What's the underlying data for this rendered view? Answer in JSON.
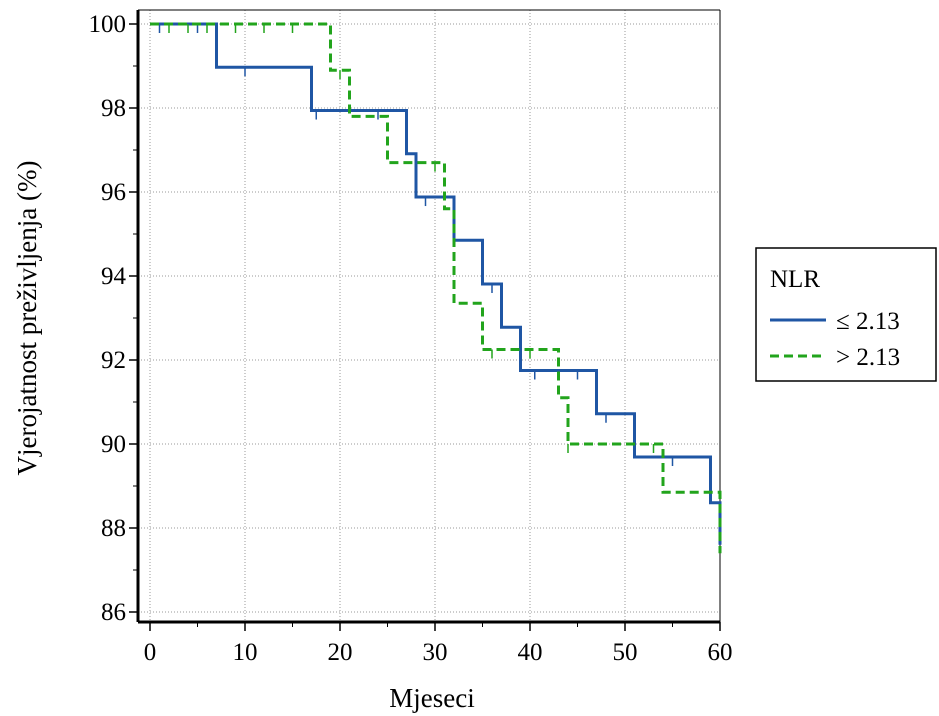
{
  "chart_data": {
    "type": "line",
    "subtype": "kaplan-meier step",
    "title": "",
    "xlabel": "Mjeseci",
    "ylabel": "Vjerojatnost preživljenja (%)",
    "xlim": [
      0,
      60
    ],
    "ylim": [
      86,
      100
    ],
    "x_ticks": [
      0,
      10,
      20,
      30,
      40,
      50,
      60
    ],
    "x_tick_labels": [
      "0",
      "10",
      "20",
      "30",
      "40",
      "50",
      "60"
    ],
    "y_ticks": [
      86,
      88,
      90,
      92,
      94,
      96,
      98,
      100
    ],
    "y_tick_labels": [
      "86",
      "88",
      "90",
      "92",
      "94",
      "96",
      "98",
      "100"
    ],
    "grid": true,
    "legend": {
      "title": "NLR",
      "placement": "right",
      "entries": [
        "≤ 2.13",
        "> 2.13"
      ]
    },
    "series": [
      {
        "name": "≤ 2.13",
        "color": "#1f56a4",
        "dash": "solid",
        "steps": [
          [
            0,
            100
          ],
          [
            7,
            98.97
          ],
          [
            17,
            97.94
          ],
          [
            27,
            96.91
          ],
          [
            28,
            95.88
          ],
          [
            32,
            94.85
          ],
          [
            35,
            93.81
          ],
          [
            37,
            92.78
          ],
          [
            39,
            91.75
          ],
          [
            47,
            90.72
          ],
          [
            51,
            89.69
          ],
          [
            59,
            88.6
          ],
          [
            60,
            87.6
          ]
        ],
        "censor_x": [
          1,
          5,
          10,
          17.5,
          24,
          29,
          36,
          40.5,
          45,
          48,
          55
        ]
      },
      {
        "name": "> 2.13",
        "color": "#22a41c",
        "dash": "dashed",
        "steps": [
          [
            0,
            100
          ],
          [
            19,
            98.9
          ],
          [
            21,
            97.8
          ],
          [
            25,
            96.7
          ],
          [
            31,
            95.6
          ],
          [
            32,
            93.35
          ],
          [
            35,
            92.25
          ],
          [
            43,
            91.1
          ],
          [
            44,
            90.0
          ],
          [
            54,
            88.85
          ],
          [
            60,
            87.4
          ]
        ],
        "censor_x": [
          2,
          4,
          6,
          9,
          12,
          15,
          20,
          30,
          36,
          40,
          44,
          53
        ]
      }
    ]
  }
}
